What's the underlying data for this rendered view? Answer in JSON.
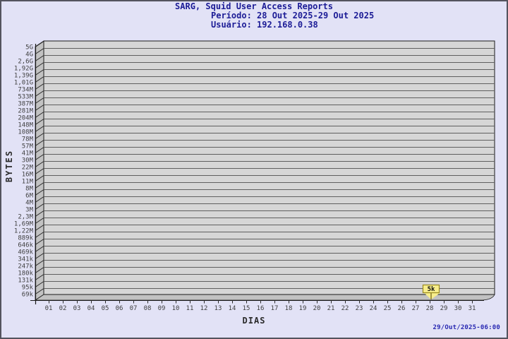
{
  "header": {
    "title": "SARG, Squid User Access Reports",
    "period": "Período: 28 Out 2025-29 Out 2025",
    "user": "Usuário: 192.168.0.38"
  },
  "footer": {
    "timestamp": "29/Out/2025-06:00"
  },
  "colors": {
    "background": "#e2e2f6",
    "border": "#54545e",
    "title": "#1c1c96",
    "timestamp": "#2828b2",
    "plot_bg": "#d6d6d6",
    "wall": "#c2c2c2",
    "grid": "#5f5f5f",
    "axis": "#1a1a1a",
    "tick_text": "#3f3f3f",
    "flag_fill": "#f8ee8c",
    "flag_border": "#99891f",
    "flag_text": "#111111"
  },
  "chart_data": {
    "type": "area",
    "title": "SARG, Squid User Access Reports",
    "subtitle": "Período: 28 Out 2025-29 Out 2025",
    "user": "Usuário: 192.168.0.38",
    "xlabel": "DIAS",
    "ylabel": "BYTES",
    "grid": true,
    "y_scale": "logarithmic (gd autoscale)",
    "ylim": [
      "69k",
      "5G"
    ],
    "y_tick_labels": [
      "5G",
      "4G",
      "2,6G",
      "1,92G",
      "1,39G",
      "1,01G",
      "734M",
      "533M",
      "387M",
      "281M",
      "204M",
      "148M",
      "108M",
      "78M",
      "57M",
      "41M",
      "30M",
      "22M",
      "16M",
      "11M",
      "8M",
      "6M",
      "4M",
      "3M",
      "2,3M",
      "1,69M",
      "1,22M",
      "889k",
      "646k",
      "469k",
      "341k",
      "247k",
      "180k",
      "131k",
      "95k",
      "69k"
    ],
    "x_tick_labels": [
      "01",
      "02",
      "03",
      "04",
      "05",
      "06",
      "07",
      "08",
      "09",
      "10",
      "11",
      "12",
      "13",
      "14",
      "15",
      "16",
      "17",
      "18",
      "19",
      "20",
      "21",
      "22",
      "23",
      "24",
      "25",
      "26",
      "27",
      "28",
      "29",
      "30",
      "31"
    ],
    "series": [
      {
        "name": "192.168.0.38",
        "points": [
          {
            "day": "28",
            "bytes": 5000,
            "bytes_label": "5k"
          }
        ]
      }
    ],
    "annotations": [
      {
        "x": "28",
        "label": "5k"
      }
    ]
  }
}
